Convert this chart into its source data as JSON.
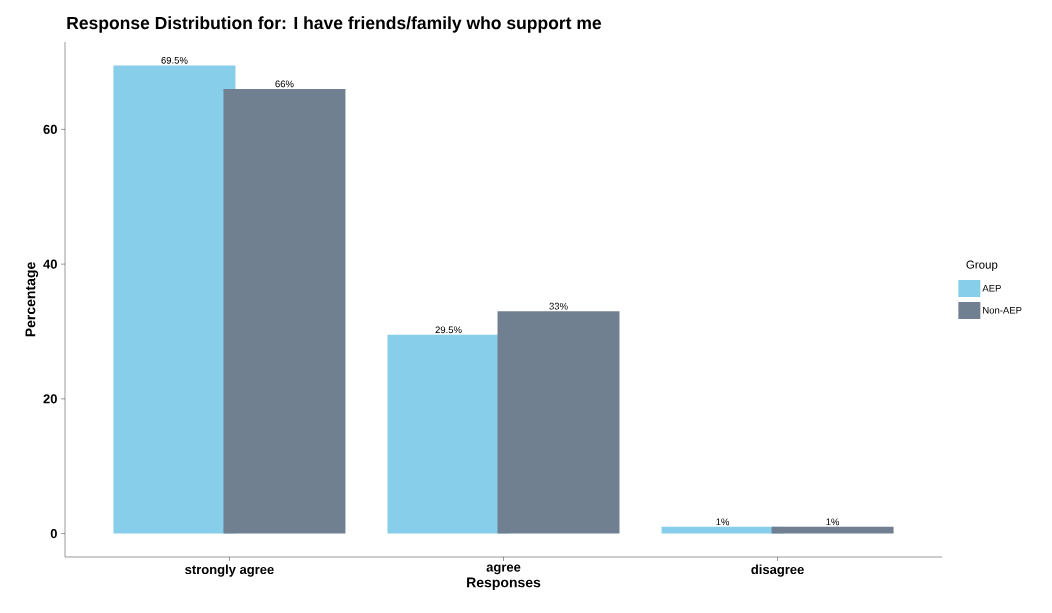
{
  "chart_data": {
    "type": "bar",
    "title": "Response Distribution for: I have friends/family who support me",
    "xlabel": "Responses",
    "ylabel": "Percentage",
    "legend_title": "Group",
    "categories": [
      "strongly agree",
      "agree",
      "disagree"
    ],
    "series": [
      {
        "name": "AEP",
        "color": "#87ceeb",
        "values": [
          69.5,
          29.5,
          1
        ],
        "value_labels": [
          "69.5%",
          "29.5%",
          "1%"
        ]
      },
      {
        "name": "Non-AEP",
        "color": "#708090",
        "values": [
          66,
          33,
          1
        ],
        "value_labels": [
          "66%",
          "33%",
          "1%"
        ]
      }
    ],
    "ylim": [
      -3.475,
      72.975
    ],
    "yticks": [
      0,
      20,
      40,
      60
    ],
    "grid": false,
    "legend": "right"
  }
}
